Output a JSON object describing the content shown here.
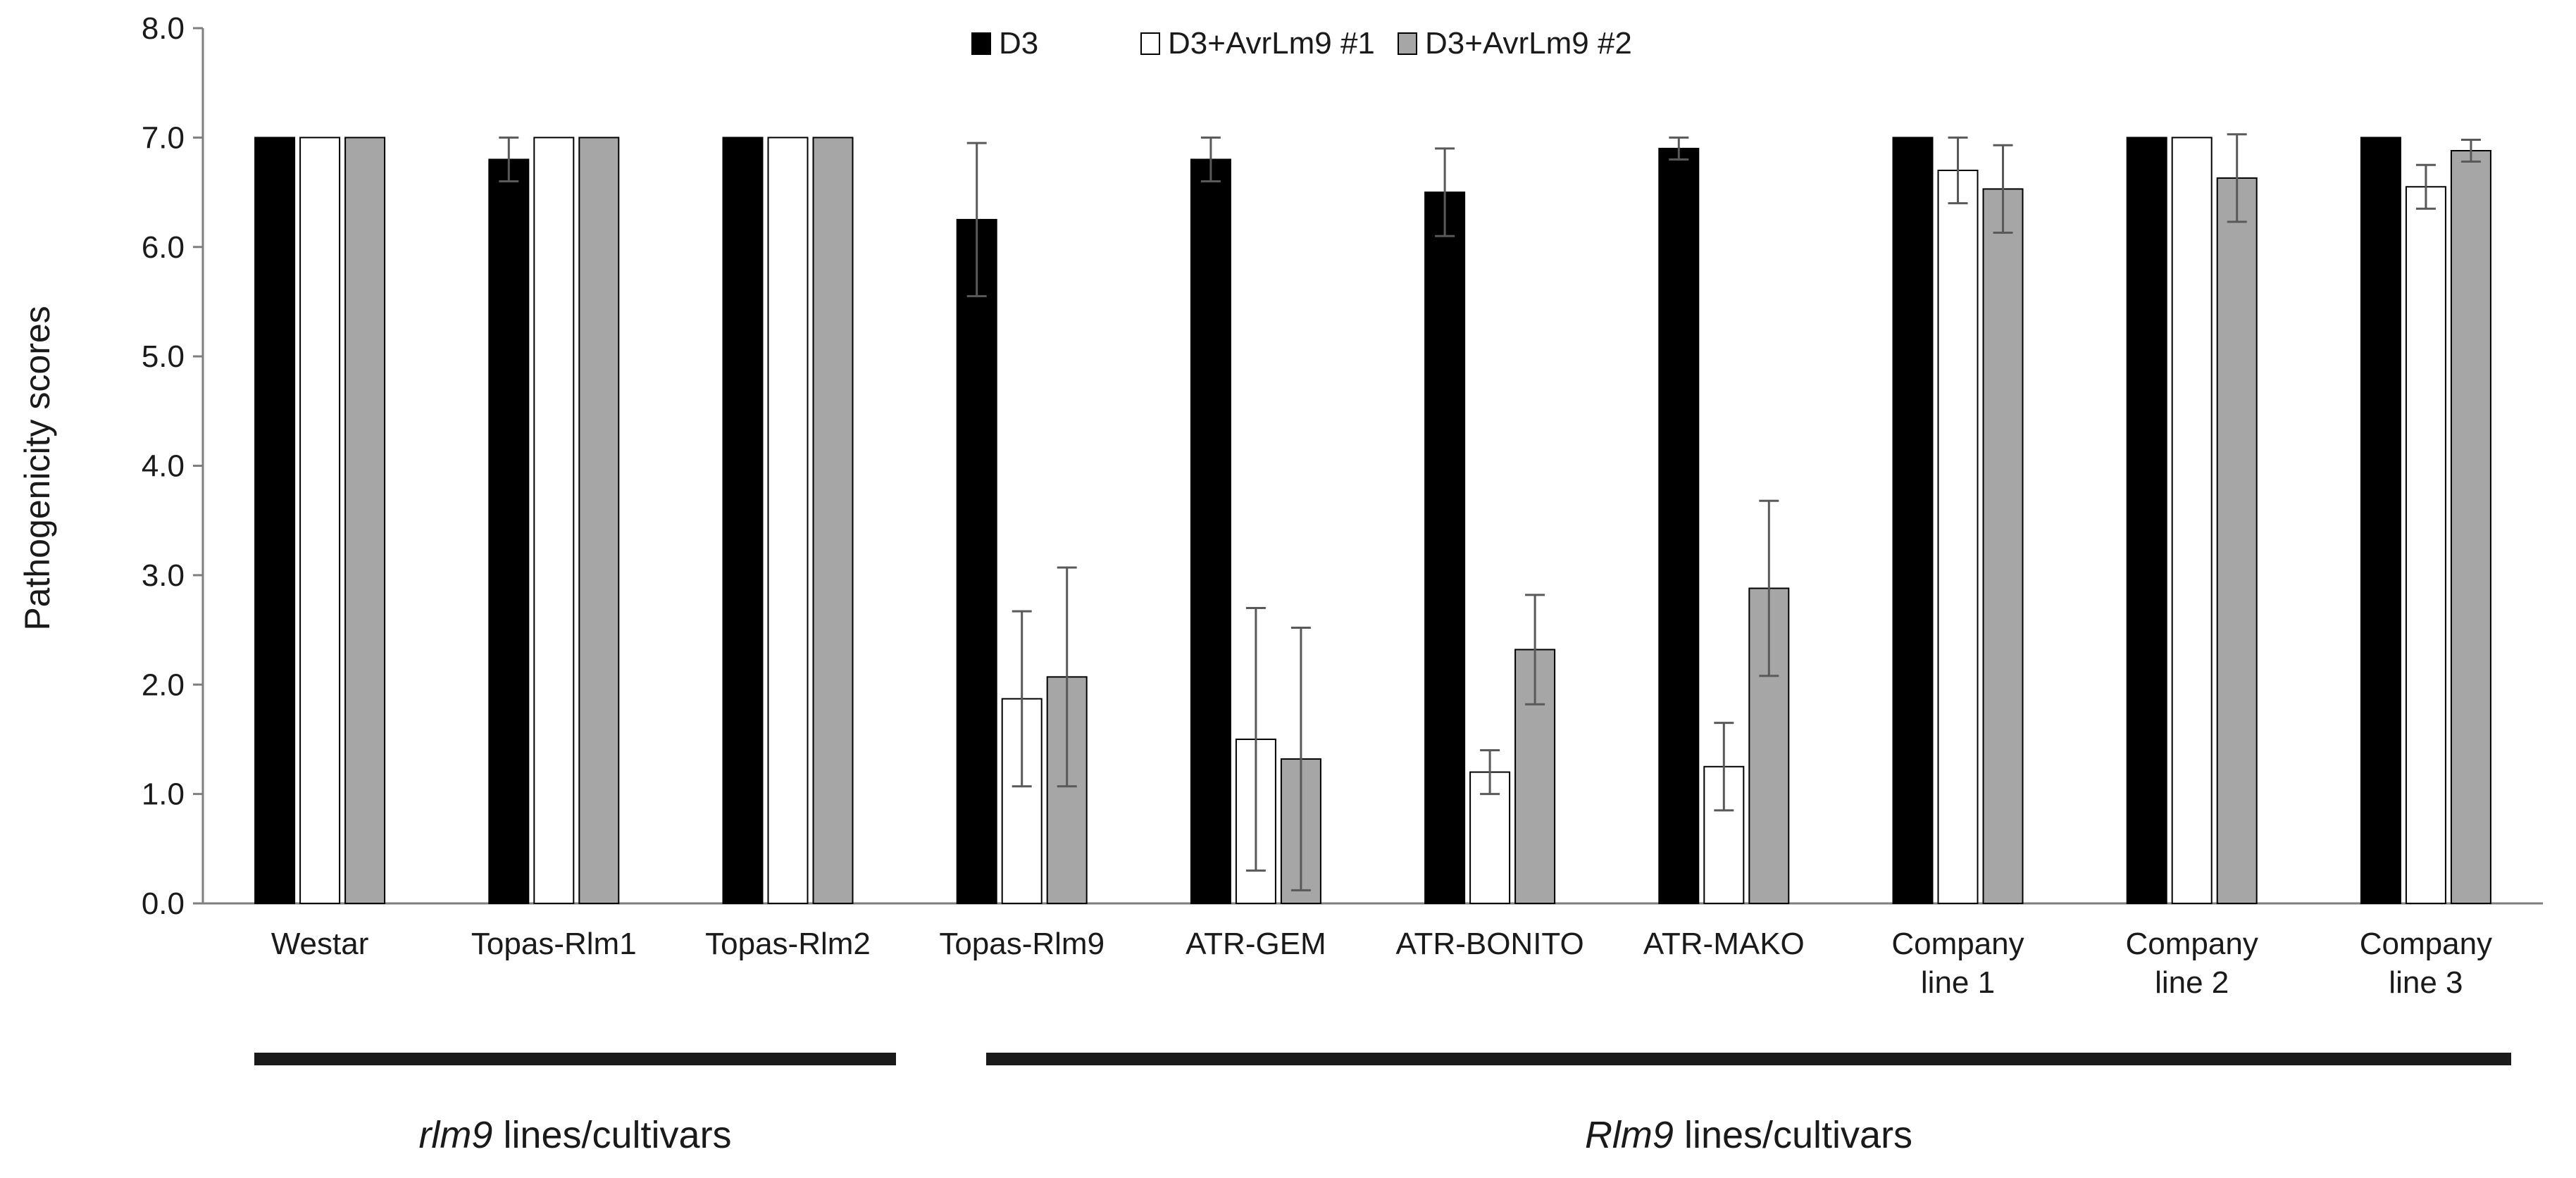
{
  "chart_data": {
    "type": "bar",
    "title": "",
    "xlabel": "",
    "ylabel": "Pathogenicity scores",
    "ylim": [
      0,
      8
    ],
    "yticks": [
      "0.0",
      "1.0",
      "2.0",
      "3.0",
      "4.0",
      "5.0",
      "6.0",
      "7.0",
      "8.0"
    ],
    "grid": false,
    "legend_position": "top-center",
    "categories": [
      [
        "Westar"
      ],
      [
        "Topas-Rlm1"
      ],
      [
        "Topas-Rlm2"
      ],
      [
        "Topas-Rlm9"
      ],
      [
        "ATR-GEM"
      ],
      [
        "ATR-BONITO"
      ],
      [
        "ATR-MAKO"
      ],
      [
        "Company",
        "line 1"
      ],
      [
        "Company",
        "line 2"
      ],
      [
        "Company",
        "line 3"
      ]
    ],
    "series": [
      {
        "name": "D3",
        "color": "#000000",
        "values": [
          7.0,
          6.8,
          7.0,
          6.25,
          6.8,
          6.5,
          6.9,
          7.0,
          7.0,
          7.0
        ],
        "errors": [
          0,
          0.2,
          0,
          0.7,
          0.2,
          0.4,
          0.1,
          0,
          0,
          0
        ]
      },
      {
        "name": "D3+AvrLm9 #1",
        "color": "#ffffff",
        "values": [
          7.0,
          7.0,
          7.0,
          1.87,
          1.5,
          1.2,
          1.25,
          6.7,
          7.0,
          6.55
        ],
        "errors": [
          0,
          0,
          0,
          0.8,
          1.2,
          0.2,
          0.4,
          0.3,
          0,
          0.2
        ]
      },
      {
        "name": "D3+AvrLm9 #2",
        "color": "#a6a6a6",
        "values": [
          7.0,
          7.0,
          7.0,
          2.07,
          1.32,
          2.32,
          2.88,
          6.53,
          6.63,
          6.88
        ],
        "errors": [
          0,
          0,
          0,
          1.0,
          1.2,
          0.5,
          0.8,
          0.4,
          0.4,
          0.1
        ]
      }
    ],
    "groups": [
      {
        "italic": "rlm9",
        "rest": " lines/cultivars",
        "from": 0,
        "to": 2
      },
      {
        "italic": "Rlm9",
        "rest": " lines/cultivars",
        "from": 3,
        "to": 9
      }
    ]
  }
}
